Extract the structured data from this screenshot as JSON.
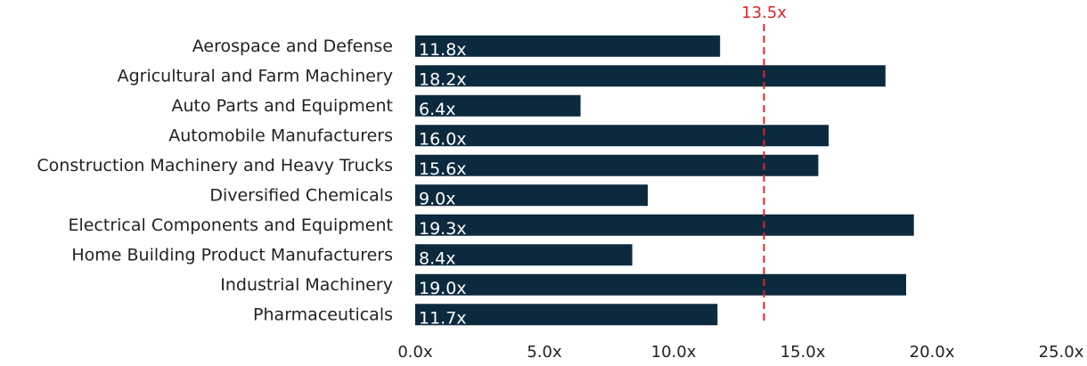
{
  "chart_data": {
    "type": "bar",
    "orientation": "horizontal",
    "categories": [
      "Aerospace and Defense",
      "Agricultural and Farm Machinery",
      "Auto Parts and Equipment",
      "Automobile Manufacturers",
      "Construction Machinery and Heavy Trucks",
      "Diversified Chemicals",
      "Electrical Components and Equipment",
      "Home Building Product Manufacturers",
      "Industrial Machinery",
      "Pharmaceuticals"
    ],
    "values": [
      11.8,
      18.2,
      6.4,
      16.0,
      15.6,
      9.0,
      19.3,
      8.4,
      19.0,
      11.7
    ],
    "value_labels": [
      "11.8x",
      "18.2x",
      "6.4x",
      "16.0x",
      "15.6x",
      "9.0x",
      "19.3x",
      "8.4x",
      "19.0x",
      "11.7x"
    ],
    "xlim": [
      0,
      25
    ],
    "x_ticks": [
      0,
      5,
      10,
      15,
      20,
      25
    ],
    "x_tick_labels": [
      "0.0x",
      "5.0x",
      "10.0x",
      "15.0x",
      "20.0x",
      "25.0x"
    ],
    "reference_line": {
      "value": 13.5,
      "label": "13.5x",
      "style": "dashed",
      "color": "#d9262b"
    },
    "bar_color": "#0c2a3e",
    "grid": false,
    "legend": "none",
    "title": "",
    "xlabel": "",
    "ylabel": ""
  }
}
